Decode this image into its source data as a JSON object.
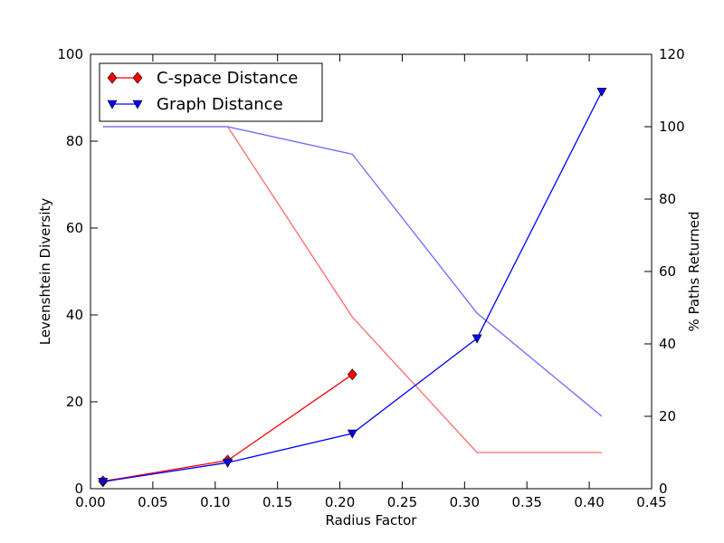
{
  "chart_data": {
    "type": "line",
    "title": "",
    "xlabel": "Radius Factor",
    "ylabel": "Levenshtein Diversity",
    "y2label": "% Paths Returned",
    "xlim": [
      0.0,
      0.45
    ],
    "ylim": [
      0,
      100
    ],
    "y2lim": [
      0,
      120
    ],
    "xticks": [
      "0.00",
      "0.05",
      "0.10",
      "0.15",
      "0.20",
      "0.25",
      "0.30",
      "0.35",
      "0.40",
      "0.45"
    ],
    "yticks": [
      "0",
      "20",
      "40",
      "60",
      "80",
      "100"
    ],
    "y2ticks": [
      "0",
      "20",
      "40",
      "60",
      "80",
      "100",
      "120"
    ],
    "legend_position": "top-left",
    "series": [
      {
        "name": "C-space Distance",
        "axis": "left",
        "color": "#ff0000",
        "marker": "diamond",
        "x": [
          0.01,
          0.11,
          0.21
        ],
        "y": [
          1.7,
          6.5,
          26.3
        ]
      },
      {
        "name": "Graph Distance",
        "axis": "left",
        "color": "#0000ff",
        "marker": "triangle-down",
        "x": [
          0.01,
          0.11,
          0.21,
          0.31,
          0.41
        ],
        "y": [
          1.6,
          6.0,
          12.7,
          34.6,
          91.4
        ]
      },
      {
        "axis": "right",
        "color": "#ff6a6a",
        "marker": "none",
        "x": [
          0.01,
          0.11,
          0.21,
          0.31,
          0.41
        ],
        "y": [
          100,
          100,
          47.4,
          10,
          10
        ]
      },
      {
        "axis": "right",
        "color": "#6a6aff",
        "marker": "none",
        "x": [
          0.01,
          0.11,
          0.21,
          0.31,
          0.41
        ],
        "y": [
          100,
          100,
          92.4,
          48.5,
          20
        ]
      }
    ]
  }
}
